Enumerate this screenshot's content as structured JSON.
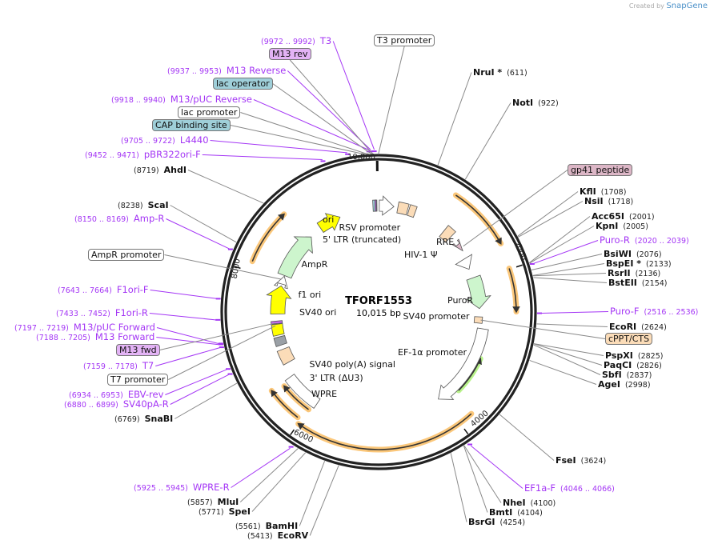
{
  "brand": {
    "created_by": "Created by",
    "name": "SnapGene"
  },
  "map": {
    "name": "TFORF1553",
    "size": "10,015 bp",
    "length_bp": 10015
  },
  "ticks": [
    "2000",
    "4000",
    "6000",
    "8000",
    "10,000"
  ],
  "enzymes": [
    {
      "name": "NruI *",
      "pos": 611
    },
    {
      "name": "NotI",
      "pos": 922
    },
    {
      "name": "KflI",
      "pos": 1708
    },
    {
      "name": "NsiI",
      "pos": 1718
    },
    {
      "name": "Acc65I",
      "pos": 2001
    },
    {
      "name": "KpnI",
      "pos": 2005
    },
    {
      "name": "BsiWI",
      "pos": 2076
    },
    {
      "name": "BspEI *",
      "pos": 2133
    },
    {
      "name": "RsrII",
      "pos": 2136
    },
    {
      "name": "BstEII",
      "pos": 2154
    },
    {
      "name": "EcoRI",
      "pos": 2624
    },
    {
      "name": "PspXI",
      "pos": 2825
    },
    {
      "name": "PaqCI",
      "pos": 2826
    },
    {
      "name": "SbfI",
      "pos": 2837
    },
    {
      "name": "AgeI",
      "pos": 2998
    },
    {
      "name": "FseI",
      "pos": 3624
    },
    {
      "name": "NheI",
      "pos": 4100
    },
    {
      "name": "BmtI",
      "pos": 4104
    },
    {
      "name": "BsrGI",
      "pos": 4254
    },
    {
      "name": "EcoRV",
      "pos": 5413
    },
    {
      "name": "BamHI",
      "pos": 5561
    },
    {
      "name": "SpeI",
      "pos": 5771
    },
    {
      "name": "MluI",
      "pos": 5857
    },
    {
      "name": "SnaBI",
      "pos": 6769
    },
    {
      "name": "ScaI",
      "pos": 8238
    },
    {
      "name": "AhdI",
      "pos": 8719
    }
  ],
  "primers": [
    {
      "name": "T3",
      "range": "9972 .. 9992"
    },
    {
      "name": "M13 Reverse",
      "range": "9937 .. 9953"
    },
    {
      "name": "M13/pUC Reverse",
      "range": "9918 .. 9940"
    },
    {
      "name": "L4440",
      "range": "9705 .. 9722"
    },
    {
      "name": "pBR322ori-F",
      "range": "9452 .. 9471"
    },
    {
      "name": "Amp-R",
      "range": "8150 .. 8169"
    },
    {
      "name": "F1ori-F",
      "range": "7643 .. 7664"
    },
    {
      "name": "F1ori-R",
      "range": "7433 .. 7452"
    },
    {
      "name": "M13/pUC Forward",
      "range": "7197 .. 7219"
    },
    {
      "name": "M13 Forward",
      "range": "7188 .. 7205"
    },
    {
      "name": "T7",
      "range": "7159 .. 7178"
    },
    {
      "name": "EBV-rev",
      "range": "6934 .. 6953"
    },
    {
      "name": "SV40pA-R",
      "range": "6880 .. 6899"
    },
    {
      "name": "WPRE-R",
      "range": "5925 .. 5945"
    },
    {
      "name": "Puro-R",
      "range": "2020 .. 2039"
    },
    {
      "name": "Puro-F",
      "range": "2516 .. 2536"
    },
    {
      "name": "EF1a-F",
      "range": "4046 .. 4066"
    }
  ],
  "feature_callouts": [
    {
      "name": "T3 promoter",
      "color": "#ffffff"
    },
    {
      "name": "M13 rev",
      "color": "#e3b3f5"
    },
    {
      "name": "lac operator",
      "color": "#9fcfd9"
    },
    {
      "name": "lac promoter",
      "color": "#ffffff"
    },
    {
      "name": "CAP binding site",
      "color": "#9fcfd9"
    },
    {
      "name": "gp41 peptide",
      "color": "#dcb6c6"
    },
    {
      "name": "cPPT/CTS",
      "color": "#fbdcb8"
    },
    {
      "name": "AmpR promoter",
      "color": "#ffffff"
    },
    {
      "name": "M13 fwd",
      "color": "#e3b3f5"
    },
    {
      "name": "T7 promoter",
      "color": "#ffffff"
    }
  ],
  "inner_features": [
    "ori",
    "RSV promoter",
    "5' LTR (truncated)",
    "HIV-1 Ψ",
    "RRE",
    "PuroR",
    "SV40 promoter",
    "EF-1α promoter",
    "WPRE",
    "3' LTR (ΔU3)",
    "SV40 poly(A) signal",
    "SV40 ori",
    "f1 ori",
    "AmpR"
  ],
  "colors": {
    "primer": "#a436f5",
    "orf": "#fbc77a",
    "backbone": "#222222",
    "ampr": "#cdf5cd",
    "ori": "#ffff00",
    "ltr": "#fbdcb8"
  }
}
